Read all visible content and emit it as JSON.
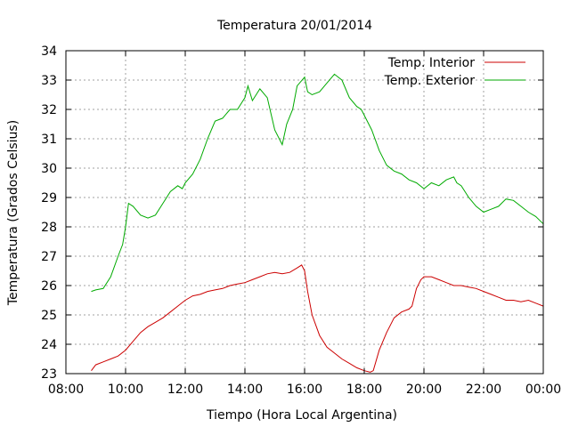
{
  "chart_data": {
    "type": "line",
    "title": "Temperatura 20/01/2014",
    "xlabel": "Tiempo (Hora Local Argentina)",
    "ylabel": "Temperatura (Grados Celsius)",
    "x_unit": "hours",
    "xlim": [
      8,
      24
    ],
    "ylim": [
      23,
      34
    ],
    "xticks": [
      {
        "value": 8,
        "label": "08:00"
      },
      {
        "value": 10,
        "label": "10:00"
      },
      {
        "value": 12,
        "label": "12:00"
      },
      {
        "value": 14,
        "label": "14:00"
      },
      {
        "value": 16,
        "label": "16:00"
      },
      {
        "value": 18,
        "label": "18:00"
      },
      {
        "value": 20,
        "label": "20:00"
      },
      {
        "value": 22,
        "label": "22:00"
      },
      {
        "value": 24,
        "label": "00:00"
      }
    ],
    "yticks": [
      23,
      24,
      25,
      26,
      27,
      28,
      29,
      30,
      31,
      32,
      33,
      34
    ],
    "grid": true,
    "legend_position": "top-right",
    "series": [
      {
        "name": "Temp. Interior",
        "color": "#cc0000",
        "x": [
          8.85,
          9.0,
          9.25,
          9.5,
          9.75,
          10.0,
          10.25,
          10.5,
          10.75,
          11.0,
          11.25,
          11.5,
          11.75,
          12.0,
          12.25,
          12.5,
          12.75,
          13.0,
          13.25,
          13.5,
          13.75,
          14.0,
          14.25,
          14.5,
          14.75,
          15.0,
          15.25,
          15.5,
          15.75,
          15.9,
          16.0,
          16.1,
          16.25,
          16.5,
          16.75,
          17.0,
          17.25,
          17.5,
          17.75,
          18.0,
          18.2,
          18.3,
          18.5,
          18.75,
          19.0,
          19.25,
          19.5,
          19.6,
          19.75,
          19.9,
          20.0,
          20.25,
          20.5,
          20.75,
          21.0,
          21.25,
          21.5,
          21.75,
          22.0,
          22.25,
          22.5,
          22.75,
          23.0,
          23.25,
          23.5,
          23.75,
          24.0
        ],
        "y": [
          23.1,
          23.3,
          23.4,
          23.5,
          23.6,
          23.8,
          24.1,
          24.4,
          24.6,
          24.75,
          24.9,
          25.1,
          25.3,
          25.5,
          25.65,
          25.7,
          25.8,
          25.85,
          25.9,
          26.0,
          26.05,
          26.1,
          26.2,
          26.3,
          26.4,
          26.45,
          26.4,
          26.45,
          26.6,
          26.7,
          26.5,
          25.8,
          25.0,
          24.3,
          23.9,
          23.7,
          23.5,
          23.35,
          23.2,
          23.1,
          23.05,
          23.1,
          23.8,
          24.4,
          24.9,
          25.1,
          25.2,
          25.3,
          25.9,
          26.2,
          26.3,
          26.3,
          26.2,
          26.1,
          26.0,
          26.0,
          25.95,
          25.9,
          25.8,
          25.7,
          25.6,
          25.5,
          25.5,
          25.45,
          25.5,
          25.4,
          25.3
        ]
      },
      {
        "name": "Temp. Exterior",
        "color": "#00aa00",
        "x": [
          8.85,
          9.0,
          9.25,
          9.5,
          9.75,
          9.9,
          10.0,
          10.1,
          10.25,
          10.5,
          10.75,
          11.0,
          11.25,
          11.5,
          11.75,
          11.9,
          12.0,
          12.25,
          12.5,
          12.75,
          13.0,
          13.25,
          13.5,
          13.75,
          14.0,
          14.1,
          14.25,
          14.5,
          14.75,
          15.0,
          15.25,
          15.4,
          15.6,
          15.75,
          16.0,
          16.1,
          16.25,
          16.5,
          16.75,
          17.0,
          17.25,
          17.5,
          17.75,
          17.9,
          18.0,
          18.25,
          18.5,
          18.75,
          19.0,
          19.25,
          19.5,
          19.75,
          20.0,
          20.25,
          20.5,
          20.75,
          21.0,
          21.1,
          21.25,
          21.5,
          21.75,
          22.0,
          22.25,
          22.5,
          22.75,
          23.0,
          23.25,
          23.5,
          23.75,
          24.0
        ],
        "y": [
          25.8,
          25.85,
          25.9,
          26.3,
          27.0,
          27.4,
          28.0,
          28.8,
          28.7,
          28.4,
          28.3,
          28.4,
          28.8,
          29.2,
          29.4,
          29.3,
          29.5,
          29.8,
          30.3,
          31.0,
          31.6,
          31.7,
          32.0,
          32.0,
          32.4,
          32.8,
          32.3,
          32.7,
          32.4,
          31.3,
          30.8,
          31.5,
          32.0,
          32.8,
          33.1,
          32.6,
          32.5,
          32.6,
          32.9,
          33.2,
          33.0,
          32.4,
          32.1,
          32.0,
          31.8,
          31.3,
          30.6,
          30.1,
          29.9,
          29.8,
          29.6,
          29.5,
          29.3,
          29.5,
          29.4,
          29.6,
          29.7,
          29.5,
          29.4,
          29.0,
          28.7,
          28.5,
          28.6,
          28.7,
          28.95,
          28.9,
          28.7,
          28.5,
          28.35,
          28.1
        ]
      }
    ]
  }
}
